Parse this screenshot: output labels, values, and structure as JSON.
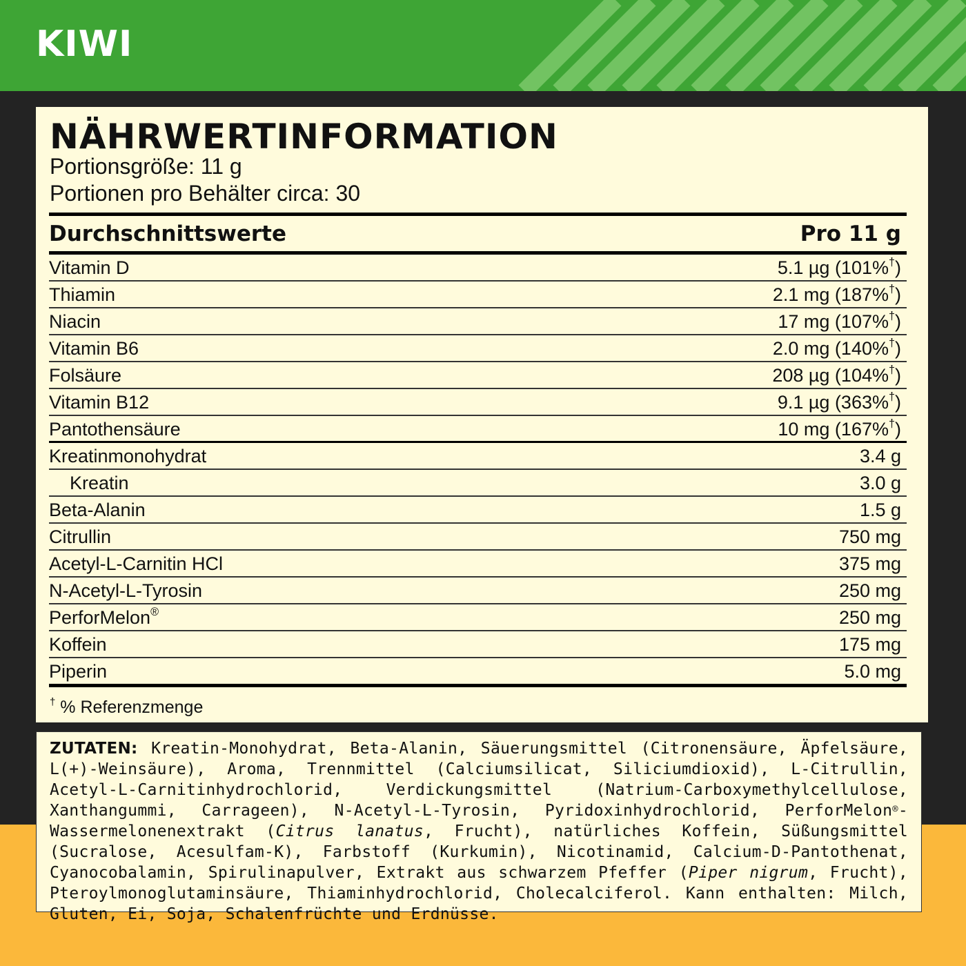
{
  "header": {
    "title": "KIWI"
  },
  "nutrition": {
    "title": "NÄHRWERTINFORMATION",
    "serving_size": "Portionsgröße: 11 g",
    "servings": "Portionen pro Behälter circa: 30",
    "columns": [
      "Durchschnittswerte",
      "Pro 11 g"
    ],
    "rows": [
      [
        "Vitamin D",
        "5.1 µg (101%†)"
      ],
      [
        "Thiamin",
        "2.1 mg (187%†)"
      ],
      [
        "Niacin",
        "17 mg (107%†)"
      ],
      [
        "Vitamin B6",
        "2.0 mg (140%†)"
      ],
      [
        "Folsäure",
        "208 µg (104%†)"
      ],
      [
        "Vitamin B12",
        "9.1 µg (363%†)"
      ],
      [
        "Pantothensäure",
        "10 mg (167%†)"
      ],
      [
        "Kreatinmonohydrat",
        "3.4 g"
      ],
      [
        "Kreatin",
        "3.0 g"
      ],
      [
        "Beta-Alanin",
        "1.5 g"
      ],
      [
        "Citrullin",
        "750 mg"
      ],
      [
        "Acetyl-L-Carnitin HCl",
        "375 mg"
      ],
      [
        "N-Acetyl-L-Tyrosin",
        "250 mg"
      ],
      [
        "PerforMelon®",
        "250 mg"
      ],
      [
        "Koffein",
        "175 mg"
      ],
      [
        "Piperin",
        "5.0 mg"
      ]
    ],
    "footnote": "† % Referenzmenge"
  },
  "ingredients": {
    "label": "ZUTATEN:",
    "parts": [
      {
        "text": " Kreatin-Monohydrat, Beta-Alanin, Säuerungsmittel (Citronensäure, Äpfelsäure, L(+)-Weinsäure), Aroma, Trennmittel (Calciumsilicat, Siliciumdioxid), L-Citrullin, Acetyl-L-Carnitinhydrochlorid, Verdickungsmittel (Natrium-Carboxymethylcellulose, Xanthangummi, Carrageen), N-Acetyl-L-Tyrosin, Pyridoxinhydrochlorid, PerforMelon®- Wassermelonenextrakt ("
      },
      {
        "text": "Citrus lanatus",
        "italic": true
      },
      {
        "text": ", Frucht), natürliches Koffein, Süßungsmittel (Sucralose, Acesulfam-K), Farbstoff (Kurkumin), Nicotinamid, Calcium-D-Pantothenat, Cyanocobalamin, Spirulinapulver, Extrakt aus schwarzem Pfeffer ("
      },
      {
        "text": "Piper nigrum",
        "italic": true
      },
      {
        "text": ", Frucht), Pteroylmonoglutaminsäure, Thiaminhydrochlorid, Cholecalciferol. Kann enthalten: Milch, Gluten, Ei, Soja, Schalenfrüchte und Erdnüsse."
      }
    ]
  }
}
